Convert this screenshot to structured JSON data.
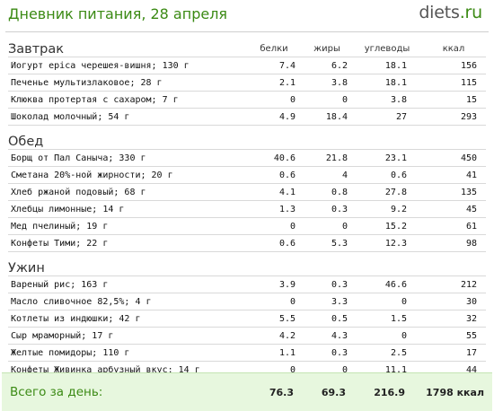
{
  "header": {
    "title": "Дневник питания, 28 апреля",
    "logo_main": "diets",
    "logo_suffix": ".ru"
  },
  "columns": {
    "protein": "белки",
    "fat": "жиры",
    "carbs": "углеводы",
    "kcal": "ккал"
  },
  "meals": [
    {
      "title": "Завтрак",
      "items": [
        {
          "name": "Йогурт epica черешея-вишня; 130 г",
          "protein": "7.4",
          "fat": "6.2",
          "carbs": "18.1",
          "kcal": "156"
        },
        {
          "name": "Печенье мультизлаковое; 28 г",
          "protein": "2.1",
          "fat": "3.8",
          "carbs": "18.1",
          "kcal": "115"
        },
        {
          "name": "Клюква протертая с сахаром; 7 г",
          "protein": "0",
          "fat": "0",
          "carbs": "3.8",
          "kcal": "15"
        },
        {
          "name": "Шоколад молочный; 54 г",
          "protein": "4.9",
          "fat": "18.4",
          "carbs": "27",
          "kcal": "293"
        }
      ]
    },
    {
      "title": "Обед",
      "items": [
        {
          "name": "Борщ от Пал Саныча; 330 г",
          "protein": "40.6",
          "fat": "21.8",
          "carbs": "23.1",
          "kcal": "450"
        },
        {
          "name": "Сметана 20%-ной жирности; 20 г",
          "protein": "0.6",
          "fat": "4",
          "carbs": "0.6",
          "kcal": "41"
        },
        {
          "name": "Хлеб ржаной подовый; 68 г",
          "protein": "4.1",
          "fat": "0.8",
          "carbs": "27.8",
          "kcal": "135"
        },
        {
          "name": "Хлебцы лимонные; 14 г",
          "protein": "1.3",
          "fat": "0.3",
          "carbs": "9.2",
          "kcal": "45"
        },
        {
          "name": "Мед пчелиный; 19 г",
          "protein": "0",
          "fat": "0",
          "carbs": "15.2",
          "kcal": "61"
        },
        {
          "name": "Конфеты Тими; 22 г",
          "protein": "0.6",
          "fat": "5.3",
          "carbs": "12.3",
          "kcal": "98"
        }
      ]
    },
    {
      "title": "Ужин",
      "items": [
        {
          "name": "Вареный рис; 163 г",
          "protein": "3.9",
          "fat": "0.3",
          "carbs": "46.6",
          "kcal": "212"
        },
        {
          "name": "Масло сливочное 82,5%; 4 г",
          "protein": "0",
          "fat": "3.3",
          "carbs": "0",
          "kcal": "30"
        },
        {
          "name": "Котлеты из индюшки; 42 г",
          "protein": "5.5",
          "fat": "0.5",
          "carbs": "1.5",
          "kcal": "32"
        },
        {
          "name": "Сыр мраморный; 17 г",
          "protein": "4.2",
          "fat": "4.3",
          "carbs": "0",
          "kcal": "55"
        },
        {
          "name": "Желтые помидоры; 110 г",
          "protein": "1.1",
          "fat": "0.3",
          "carbs": "2.5",
          "kcal": "17"
        },
        {
          "name": "Конфеты Живинка арбузный вкус; 14 г",
          "protein": "0",
          "fat": "0",
          "carbs": "11.1",
          "kcal": "44"
        }
      ]
    }
  ],
  "totals": {
    "label": "Всего за день:",
    "protein": "76.3",
    "fat": "69.3",
    "carbs": "216.9",
    "kcal": "1798 ккал"
  },
  "colors": {
    "accent": "#3b8a14",
    "footer_bg": "#e7f7de"
  }
}
